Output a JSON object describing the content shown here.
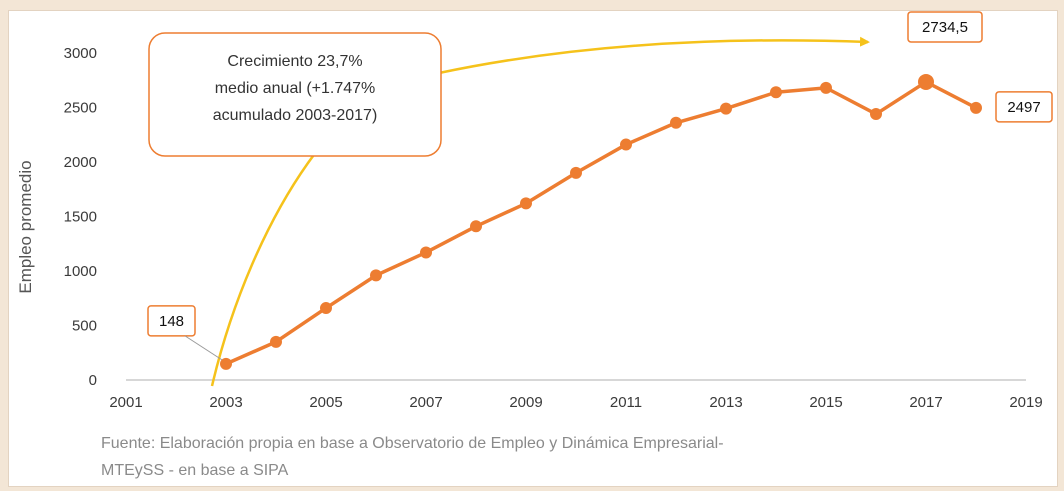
{
  "chart_data": {
    "type": "line",
    "title": "",
    "xlabel": "",
    "ylabel": "Empleo promedio",
    "xlim": [
      2001,
      2019
    ],
    "ylim": [
      0,
      3000
    ],
    "xticks": [
      "2001",
      "2003",
      "2005",
      "2007",
      "2009",
      "2011",
      "2013",
      "2015",
      "2017",
      "2019"
    ],
    "yticks": [
      "0",
      "500",
      "1000",
      "1500",
      "2000",
      "2500",
      "3000"
    ],
    "grid": false,
    "series": [
      {
        "name": "",
        "color": "#ed7d31",
        "x": [
          2003,
          2004,
          2005,
          2006,
          2007,
          2008,
          2009,
          2010,
          2011,
          2012,
          2013,
          2014,
          2015,
          2016,
          2017,
          2018
        ],
        "y": [
          148,
          350,
          660,
          960,
          1170,
          1410,
          1620,
          1900,
          2160,
          2360,
          2490,
          2640,
          2680,
          2440,
          2734.5,
          2497
        ]
      }
    ],
    "data_labels": [
      {
        "x": 2003,
        "y": 148,
        "text": "148"
      },
      {
        "x": 2017,
        "y": 2734.5,
        "text": "2734,5"
      },
      {
        "x": 2018,
        "y": 2497,
        "text": "2497"
      }
    ],
    "annotation": {
      "lines": [
        "Crecimiento 23,7%",
        "medio anual (+1.747%",
        "acumulado 2003-2017)"
      ],
      "arrow_color": "#f5c21b",
      "border_color": "#ed7d31"
    },
    "source": [
      "Fuente: Elaboración propia en base a Observatorio de Empleo y Dinámica Empresarial-",
      "MTEySS - en base a SIPA"
    ]
  }
}
